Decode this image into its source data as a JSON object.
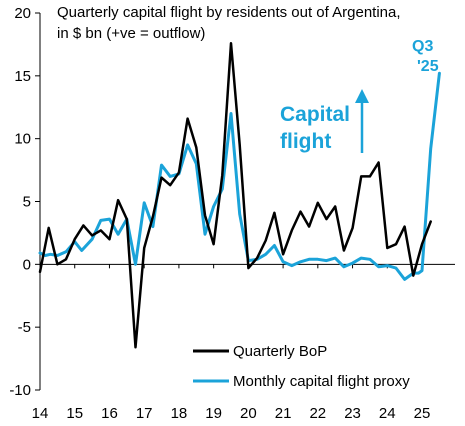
{
  "chart_data": {
    "type": "line",
    "title_lines": [
      "Quarterly capital flight by residents out of Argentina,",
      "in $ bn (+ve = outflow)"
    ],
    "xlabel": "",
    "ylabel": "",
    "xlim": [
      2014.0,
      2025.95
    ],
    "ylim": [
      -10,
      20
    ],
    "y_ticks": [
      -10,
      -5,
      0,
      5,
      10,
      15,
      20
    ],
    "x_ticks": [
      14,
      15,
      16,
      17,
      18,
      19,
      20,
      21,
      22,
      23,
      24,
      25
    ],
    "grid": false,
    "legend_position": "bottom-center",
    "annotations": {
      "capital_flight_lines": [
        "Capital",
        "flight"
      ],
      "q3_lines": [
        "Q3",
        "'25"
      ]
    },
    "annotation_color": "#1ba3d9",
    "series": [
      {
        "name": "Quarterly BoP",
        "color": "#000000",
        "points": [
          [
            2014.0,
            -0.6
          ],
          [
            2014.25,
            2.9
          ],
          [
            2014.5,
            0.0
          ],
          [
            2014.75,
            0.4
          ],
          [
            2015.0,
            2.0
          ],
          [
            2015.25,
            3.1
          ],
          [
            2015.5,
            2.3
          ],
          [
            2015.75,
            2.7
          ],
          [
            2016.0,
            2.0
          ],
          [
            2016.25,
            5.1
          ],
          [
            2016.5,
            3.6
          ],
          [
            2016.75,
            -6.6
          ],
          [
            2017.0,
            1.3
          ],
          [
            2017.25,
            3.8
          ],
          [
            2017.5,
            6.9
          ],
          [
            2017.75,
            6.3
          ],
          [
            2018.0,
            7.3
          ],
          [
            2018.25,
            11.6
          ],
          [
            2018.5,
            9.3
          ],
          [
            2018.75,
            3.9
          ],
          [
            2019.0,
            1.6
          ],
          [
            2019.25,
            7.1
          ],
          [
            2019.5,
            17.6
          ],
          [
            2019.75,
            9.5
          ],
          [
            2020.0,
            -0.3
          ],
          [
            2020.25,
            0.5
          ],
          [
            2020.5,
            1.9
          ],
          [
            2020.75,
            4.1
          ],
          [
            2021.0,
            0.8
          ],
          [
            2021.25,
            2.7
          ],
          [
            2021.5,
            4.2
          ],
          [
            2021.75,
            3.0
          ],
          [
            2022.0,
            4.9
          ],
          [
            2022.25,
            3.6
          ],
          [
            2022.5,
            4.6
          ],
          [
            2022.75,
            1.1
          ],
          [
            2023.0,
            2.9
          ],
          [
            2023.25,
            7.0
          ],
          [
            2023.5,
            7.0
          ],
          [
            2023.75,
            8.1
          ],
          [
            2024.0,
            1.3
          ],
          [
            2024.25,
            1.6
          ],
          [
            2024.5,
            3.0
          ],
          [
            2024.75,
            -0.9
          ],
          [
            2025.0,
            1.6
          ],
          [
            2025.25,
            3.4
          ]
        ]
      },
      {
        "name": "Monthly capital flight proxy",
        "color": "#1ba3d9",
        "points": [
          [
            2014.0,
            0.9
          ],
          [
            2014.15,
            0.7
          ],
          [
            2014.3,
            0.8
          ],
          [
            2014.5,
            0.7
          ],
          [
            2014.75,
            1.0
          ],
          [
            2015.0,
            1.8
          ],
          [
            2015.2,
            1.1
          ],
          [
            2015.5,
            2.0
          ],
          [
            2015.75,
            3.5
          ],
          [
            2016.0,
            3.6
          ],
          [
            2016.25,
            2.4
          ],
          [
            2016.5,
            3.6
          ],
          [
            2016.75,
            0.0
          ],
          [
            2017.0,
            4.9
          ],
          [
            2017.25,
            3.0
          ],
          [
            2017.5,
            7.9
          ],
          [
            2017.75,
            7.0
          ],
          [
            2018.0,
            7.2
          ],
          [
            2018.25,
            9.5
          ],
          [
            2018.5,
            8.0
          ],
          [
            2018.75,
            2.4
          ],
          [
            2019.0,
            4.6
          ],
          [
            2019.25,
            6.0
          ],
          [
            2019.5,
            12.0
          ],
          [
            2019.75,
            4.0
          ],
          [
            2020.0,
            0.3
          ],
          [
            2020.25,
            0.4
          ],
          [
            2020.5,
            0.8
          ],
          [
            2020.75,
            1.5
          ],
          [
            2021.0,
            0.2
          ],
          [
            2021.25,
            -0.1
          ],
          [
            2021.5,
            0.2
          ],
          [
            2021.75,
            0.4
          ],
          [
            2022.0,
            0.4
          ],
          [
            2022.25,
            0.3
          ],
          [
            2022.5,
            0.5
          ],
          [
            2022.75,
            -0.2
          ],
          [
            2023.0,
            0.1
          ],
          [
            2023.25,
            0.5
          ],
          [
            2023.5,
            0.4
          ],
          [
            2023.75,
            -0.2
          ],
          [
            2024.0,
            -0.1
          ],
          [
            2024.25,
            -0.3
          ],
          [
            2024.5,
            -1.2
          ],
          [
            2024.75,
            -0.7
          ],
          [
            2024.9,
            -0.7
          ],
          [
            2025.0,
            -0.5
          ],
          [
            2025.25,
            9.2
          ],
          [
            2025.5,
            15.2
          ]
        ]
      }
    ]
  }
}
